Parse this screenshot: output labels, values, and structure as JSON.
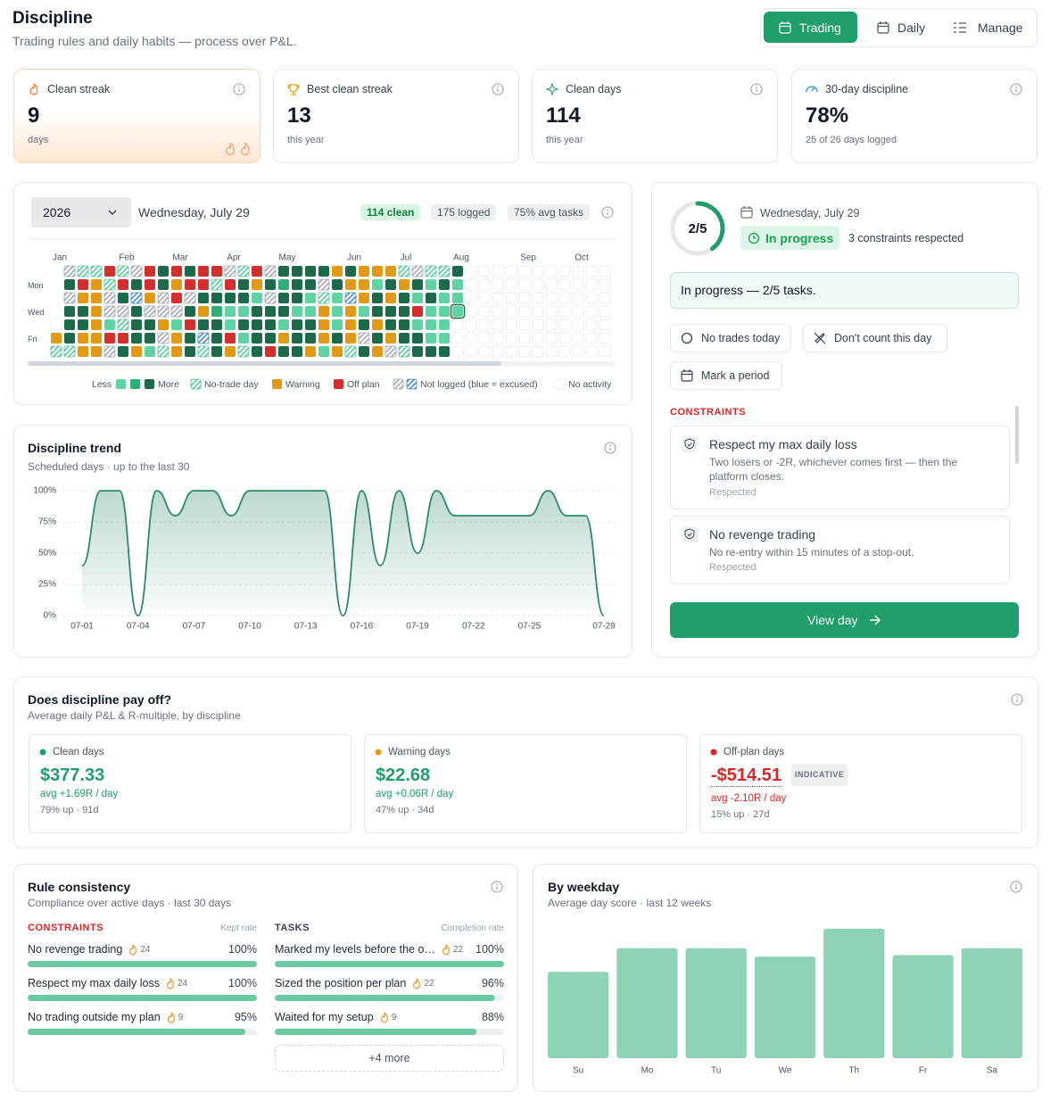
{
  "header": {
    "title": "Discipline",
    "subtitle": "Trading rules and daily habits — process over P&L.",
    "tabs": [
      "Trading",
      "Daily",
      "Manage"
    ],
    "active_tab": 0
  },
  "stats": [
    {
      "label": "Clean streak",
      "value": "9",
      "sub": "days"
    },
    {
      "label": "Best clean streak",
      "value": "13",
      "sub": "this year"
    },
    {
      "label": "Clean days",
      "value": "114",
      "sub": "this year"
    },
    {
      "label": "30-day discipline",
      "value": "78%",
      "sub": "25 of 26 days logged"
    }
  ],
  "heatmap": {
    "year": "2026",
    "date": "Wednesday, July 29",
    "badges": [
      "114 clean",
      "175 logged",
      "75% avg tasks"
    ],
    "months": [
      "Jan",
      "Feb",
      "Mar",
      "Apr",
      "May",
      "Jun",
      "Jul",
      "Aug",
      "Sep",
      "Oct"
    ],
    "weekdays": [
      "Mon",
      "Wed",
      "Fri"
    ],
    "legend": {
      "less": "Less",
      "more": "More",
      "items": [
        "No-trade day",
        "Warning",
        "Off plan",
        "Not logged (blue = excused)",
        "No activity"
      ]
    },
    "palette": [
      "#ffffff",
      "#5fd3a3",
      "#2fae78",
      "#1c6a4a",
      "#4cc492",
      "#e29a16",
      "#d32f2f",
      "#9ca3af",
      "#3b82c4"
    ],
    "rows": [
      [
        null,
        7,
        4,
        4,
        6,
        4,
        7,
        6,
        3,
        6,
        3,
        6,
        6,
        7,
        4,
        6,
        7,
        3,
        3,
        3,
        3,
        5,
        3,
        5,
        5,
        5,
        4,
        7,
        4,
        4,
        3,
        0,
        0,
        0,
        0,
        0,
        0,
        0,
        0,
        0,
        0,
        0
      ],
      [
        null,
        3,
        6,
        5,
        4,
        6,
        3,
        6,
        3,
        5,
        6,
        6,
        4,
        6,
        3,
        5,
        3,
        2,
        3,
        3,
        7,
        3,
        5,
        5,
        1,
        3,
        5,
        3,
        1,
        3,
        1,
        0,
        0,
        0,
        0,
        0,
        0,
        0,
        0,
        0,
        0,
        0
      ],
      [
        null,
        7,
        5,
        5,
        7,
        3,
        8,
        5,
        7,
        6,
        7,
        3,
        3,
        3,
        3,
        1,
        7,
        3,
        3,
        1,
        4,
        1,
        8,
        5,
        3,
        5,
        3,
        1,
        3,
        1,
        1,
        0,
        0,
        0,
        0,
        0,
        0,
        0,
        0,
        0,
        0,
        0
      ],
      [
        null,
        3,
        3,
        5,
        7,
        7,
        3,
        7,
        7,
        7,
        3,
        5,
        2,
        1,
        1,
        3,
        3,
        3,
        1,
        1,
        5,
        1,
        5,
        1,
        3,
        3,
        3,
        6,
        1,
        1,
        1,
        0,
        0,
        0,
        0,
        0,
        0,
        0,
        0,
        0,
        0,
        0
      ],
      [
        0,
        3,
        3,
        5,
        1,
        4,
        3,
        3,
        5,
        1,
        6,
        3,
        3,
        1,
        3,
        3,
        3,
        1,
        3,
        3,
        5,
        1,
        5,
        3,
        5,
        3,
        3,
        1,
        1,
        1,
        0,
        0,
        0,
        0,
        0,
        0,
        0,
        0,
        0,
        0,
        0,
        0
      ],
      [
        5,
        3,
        5,
        5,
        6,
        6,
        3,
        3,
        7,
        5,
        3,
        8,
        3,
        6,
        1,
        3,
        3,
        5,
        3,
        3,
        5,
        3,
        5,
        7,
        3,
        5,
        3,
        3,
        1,
        1,
        0,
        0,
        0,
        0,
        0,
        0,
        0,
        0,
        0,
        0,
        0,
        0
      ],
      [
        4,
        4,
        5,
        5,
        7,
        3,
        5,
        1,
        4,
        5,
        3,
        4,
        3,
        5,
        4,
        3,
        6,
        3,
        3,
        5,
        1,
        5,
        4,
        3,
        5,
        7,
        4,
        3,
        3,
        3,
        0,
        0,
        0,
        0,
        0,
        0,
        0,
        0,
        0,
        0,
        0,
        0
      ]
    ]
  },
  "chart_data": [
    {
      "type": "line",
      "title": "Discipline trend",
      "subtitle": "Scheduled days · up to the last 30",
      "color": "#2e8b66",
      "grid": true,
      "categories": [
        "07-01",
        null,
        null,
        "07-04",
        null,
        null,
        "07-07",
        null,
        null,
        "07-10",
        null,
        null,
        "07-13",
        null,
        null,
        "07-16",
        null,
        null,
        "07-19",
        null,
        null,
        "07-22",
        null,
        null,
        "07-25",
        null,
        null,
        null,
        "07-29"
      ],
      "values": [
        40,
        100,
        100,
        0,
        100,
        80,
        100,
        100,
        80,
        100,
        100,
        100,
        100,
        100,
        0,
        100,
        40,
        100,
        50,
        100,
        80,
        80,
        80,
        80,
        80,
        100,
        80,
        80,
        0
      ],
      "ylim": [
        0,
        100
      ],
      "yticks": [
        {
          "value": 0,
          "label": "0%"
        },
        {
          "value": 25,
          "label": "25%"
        },
        {
          "value": 50,
          "label": "50%"
        },
        {
          "value": 75,
          "label": "75%"
        },
        {
          "value": 100,
          "label": "100%"
        }
      ]
    },
    {
      "type": "bar",
      "title": "By weekday",
      "subtitle": "Average day score · last 12 weeks",
      "color": "#8fd3b6",
      "categories": [
        "Su",
        "Mo",
        "Tu",
        "We",
        "Th",
        "Fr",
        "Sa"
      ],
      "values": [
        62,
        79,
        79,
        73,
        93,
        74,
        79
      ],
      "ylim": [
        0,
        100
      ]
    }
  ],
  "today": {
    "ring": {
      "value": 2,
      "total": 5,
      "label": "2/5"
    },
    "date": "Wednesday, July 29",
    "status": "In progress",
    "respected": "3 constraints respected",
    "message": "In progress — 2/5 tasks.",
    "actions": [
      "No trades today",
      "Don't count this day",
      "Mark a period"
    ],
    "constraints_title": "CONSTRAINTS",
    "constraints": [
      {
        "name": "Respect my max daily loss",
        "desc": "Two losers or -2R, whichever comes first — then the platform closes.",
        "status": "Respected"
      },
      {
        "name": "No revenge trading",
        "desc": "No re-entry within 15 minutes of a stop-out.",
        "status": "Respected"
      }
    ],
    "button": "View day"
  },
  "payoff": {
    "title": "Does discipline pay off?",
    "subtitle": "Average daily P&L & R-multiple, by discipline",
    "cards": [
      {
        "label": "Clean days",
        "value": "$377.33",
        "avg": "avg +1.69R / day",
        "sub": "79% up · 91d"
      },
      {
        "label": "Warning days",
        "value": "$22.68",
        "avg": "avg +0.06R / day",
        "sub": "47% up · 34d"
      },
      {
        "label": "Off-plan days",
        "value": "-$514.51",
        "badge": "INDICATIVE",
        "avg": "avg -2.10R / day",
        "sub": "15% up · 27d"
      }
    ]
  },
  "consistency": {
    "title": "Rule consistency",
    "subtitle": "Compliance over active days · last 30 days",
    "xlim": [
      0,
      100
    ],
    "constraints": {
      "title": "CONSTRAINTS",
      "caption": "Kept rate",
      "items": [
        {
          "name": "No revenge trading",
          "streak": 24,
          "value": 100,
          "label": "100%"
        },
        {
          "name": "Respect my max daily loss",
          "streak": 24,
          "value": 100,
          "label": "100%"
        },
        {
          "name": "No trading outside my plan",
          "streak": 9,
          "value": 95,
          "label": "95%"
        }
      ]
    },
    "tasks": {
      "title": "TASKS",
      "caption": "Completion rate",
      "items": [
        {
          "name": "Marked my levels before the o…",
          "streak": 22,
          "value": 100,
          "label": "100%"
        },
        {
          "name": "Sized the position per plan",
          "streak": 22,
          "value": 96,
          "label": "96%"
        },
        {
          "name": "Waited for my setup",
          "streak": 9,
          "value": 88,
          "label": "88%"
        }
      ],
      "more": "+4 more"
    }
  }
}
